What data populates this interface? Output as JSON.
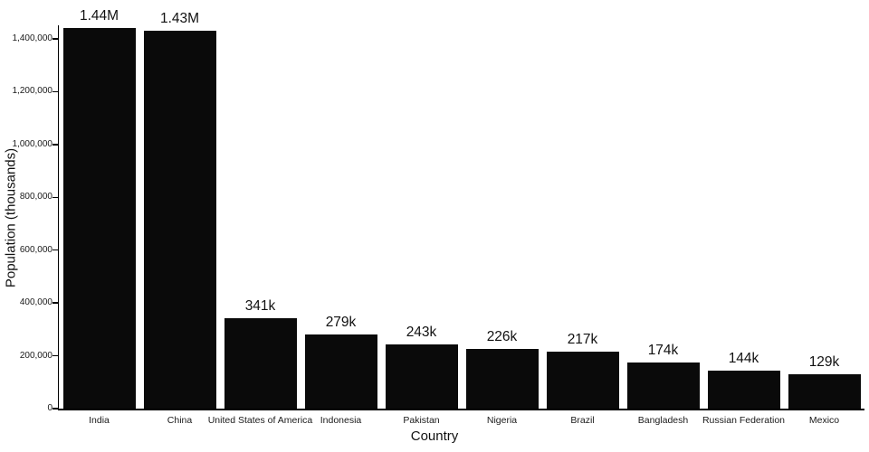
{
  "chart_data": {
    "type": "bar",
    "title": "",
    "xlabel": "Country",
    "ylabel": "Population (thousands)",
    "categories": [
      "India",
      "China",
      "United States of America",
      "Indonesia",
      "Pakistan",
      "Nigeria",
      "Brazil",
      "Bangladesh",
      "Russian Federation",
      "Mexico"
    ],
    "values": [
      1440000,
      1430000,
      341000,
      279000,
      243000,
      226000,
      217000,
      174000,
      144000,
      129000
    ],
    "value_labels": [
      "1.44M",
      "1.43M",
      "341k",
      "279k",
      "243k",
      "226k",
      "217k",
      "174k",
      "144k",
      "129k"
    ],
    "ylim": [
      0,
      1440000
    ],
    "yticks": [
      0,
      200000,
      400000,
      600000,
      800000,
      1000000,
      1200000,
      1400000
    ],
    "ytick_labels": [
      "0",
      "200,000",
      "400,000",
      "600,000",
      "800,000",
      "1,000,000",
      "1,200,000",
      "1,400,000"
    ],
    "bar_color": "#0a0a0a",
    "grid": false,
    "legend": false
  }
}
